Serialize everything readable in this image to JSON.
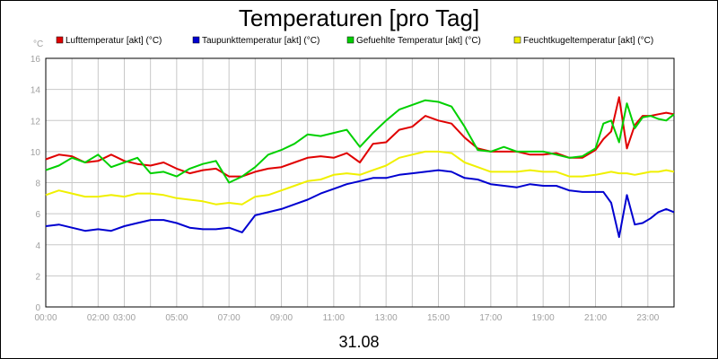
{
  "chart_data": {
    "type": "line",
    "title": "Temperaturen [pro Tag]",
    "y_unit": "°C",
    "xlabel": "31.08",
    "ylim": [
      0,
      16
    ],
    "yticks": [
      0,
      2,
      4,
      6,
      8,
      10,
      12,
      14,
      16
    ],
    "xlim": [
      0,
      24
    ],
    "xticks": [
      {
        "x": 0,
        "label": "00:00"
      },
      {
        "x": 2,
        "label": "02:00"
      },
      {
        "x": 3,
        "label": "03:00"
      },
      {
        "x": 5,
        "label": "05:00"
      },
      {
        "x": 7,
        "label": "07:00"
      },
      {
        "x": 9,
        "label": "09:00"
      },
      {
        "x": 11,
        "label": "11:00"
      },
      {
        "x": 13,
        "label": "13:00"
      },
      {
        "x": 15,
        "label": "15:00"
      },
      {
        "x": 17,
        "label": "17:00"
      },
      {
        "x": 19,
        "label": "19:00"
      },
      {
        "x": 21,
        "label": "21:00"
      },
      {
        "x": 23,
        "label": "23:00"
      }
    ],
    "grid": true,
    "legend_position": "top",
    "series": [
      {
        "name": "Lufttemperatur [akt] (°C)",
        "color": "#e00000",
        "x": [
          0,
          0.5,
          1,
          1.5,
          2,
          2.5,
          3,
          3.5,
          4,
          4.5,
          5,
          5.5,
          6,
          6.5,
          7,
          7.5,
          8,
          8.5,
          9,
          9.5,
          10,
          10.5,
          11,
          11.5,
          12,
          12.5,
          13,
          13.5,
          14,
          14.5,
          15,
          15.5,
          16,
          16.5,
          17,
          17.5,
          18,
          18.5,
          19,
          19.5,
          20,
          20.5,
          21,
          21.3,
          21.6,
          21.9,
          22.2,
          22.5,
          22.8,
          23.1,
          23.4,
          23.7,
          24
        ],
        "values": [
          9.5,
          9.8,
          9.7,
          9.3,
          9.4,
          9.8,
          9.4,
          9.2,
          9.1,
          9.3,
          8.9,
          8.6,
          8.8,
          8.9,
          8.4,
          8.4,
          8.7,
          8.9,
          9.0,
          9.3,
          9.6,
          9.7,
          9.6,
          9.9,
          9.3,
          10.5,
          10.6,
          11.4,
          11.6,
          12.3,
          12.0,
          11.8,
          10.9,
          10.2,
          10.0,
          10.0,
          10.0,
          9.8,
          9.8,
          9.9,
          9.6,
          9.6,
          10.1,
          10.8,
          11.3,
          13.5,
          10.2,
          11.7,
          12.3,
          12.3,
          12.4,
          12.5,
          12.4
        ]
      },
      {
        "name": "Taupunkttemperatur [akt] (°C)",
        "color": "#0000d0",
        "x": [
          0,
          0.5,
          1,
          1.5,
          2,
          2.5,
          3,
          3.5,
          4,
          4.5,
          5,
          5.5,
          6,
          6.5,
          7,
          7.5,
          8,
          8.5,
          9,
          9.5,
          10,
          10.5,
          11,
          11.5,
          12,
          12.5,
          13,
          13.5,
          14,
          14.5,
          15,
          15.5,
          16,
          16.5,
          17,
          17.5,
          18,
          18.5,
          19,
          19.5,
          20,
          20.5,
          21,
          21.3,
          21.6,
          21.9,
          22.2,
          22.5,
          22.8,
          23.1,
          23.4,
          23.7,
          24
        ],
        "values": [
          5.2,
          5.3,
          5.1,
          4.9,
          5.0,
          4.9,
          5.2,
          5.4,
          5.6,
          5.6,
          5.4,
          5.1,
          5.0,
          5.0,
          5.1,
          4.8,
          5.9,
          6.1,
          6.3,
          6.6,
          6.9,
          7.3,
          7.6,
          7.9,
          8.1,
          8.3,
          8.3,
          8.5,
          8.6,
          8.7,
          8.8,
          8.7,
          8.3,
          8.2,
          7.9,
          7.8,
          7.7,
          7.9,
          7.8,
          7.8,
          7.5,
          7.4,
          7.4,
          7.4,
          6.7,
          4.5,
          7.2,
          5.3,
          5.4,
          5.7,
          6.1,
          6.3,
          6.1
        ]
      },
      {
        "name": "Gefuehlte Temperatur [akt] (°C)",
        "color": "#00d000",
        "x": [
          0,
          0.5,
          1,
          1.5,
          2,
          2.5,
          3,
          3.5,
          4,
          4.5,
          5,
          5.5,
          6,
          6.5,
          7,
          7.5,
          8,
          8.5,
          9,
          9.5,
          10,
          10.5,
          11,
          11.5,
          12,
          12.5,
          13,
          13.5,
          14,
          14.5,
          15,
          15.5,
          16,
          16.5,
          17,
          17.5,
          18,
          18.5,
          19,
          19.5,
          20,
          20.5,
          21,
          21.3,
          21.6,
          21.9,
          22.2,
          22.5,
          22.8,
          23.1,
          23.4,
          23.7,
          24
        ],
        "values": [
          8.8,
          9.1,
          9.6,
          9.3,
          9.8,
          9.0,
          9.3,
          9.6,
          8.6,
          8.7,
          8.4,
          8.9,
          9.2,
          9.4,
          8.0,
          8.4,
          9.0,
          9.8,
          10.1,
          10.5,
          11.1,
          11.0,
          11.2,
          11.4,
          10.3,
          11.2,
          12.0,
          12.7,
          13.0,
          13.3,
          13.2,
          12.9,
          11.6,
          10.1,
          10.0,
          10.3,
          10.0,
          10.0,
          10.0,
          9.8,
          9.6,
          9.7,
          10.2,
          11.8,
          12.0,
          10.6,
          13.1,
          11.5,
          12.2,
          12.3,
          12.1,
          12.0,
          12.4
        ]
      },
      {
        "name": "Feuchtkugeltemperatur [akt] (°C)",
        "color": "#f0f000",
        "x": [
          0,
          0.5,
          1,
          1.5,
          2,
          2.5,
          3,
          3.5,
          4,
          4.5,
          5,
          5.5,
          6,
          6.5,
          7,
          7.5,
          8,
          8.5,
          9,
          9.5,
          10,
          10.5,
          11,
          11.5,
          12,
          12.5,
          13,
          13.5,
          14,
          14.5,
          15,
          15.5,
          16,
          16.5,
          17,
          17.5,
          18,
          18.5,
          19,
          19.5,
          20,
          20.5,
          21,
          21.3,
          21.6,
          21.9,
          22.2,
          22.5,
          22.8,
          23.1,
          23.4,
          23.7,
          24
        ],
        "values": [
          7.2,
          7.5,
          7.3,
          7.1,
          7.1,
          7.2,
          7.1,
          7.3,
          7.3,
          7.2,
          7.0,
          6.9,
          6.8,
          6.6,
          6.7,
          6.6,
          7.1,
          7.2,
          7.5,
          7.8,
          8.1,
          8.2,
          8.5,
          8.6,
          8.5,
          8.8,
          9.1,
          9.6,
          9.8,
          10.0,
          10.0,
          9.9,
          9.3,
          9.0,
          8.7,
          8.7,
          8.7,
          8.8,
          8.7,
          8.7,
          8.4,
          8.4,
          8.5,
          8.6,
          8.7,
          8.6,
          8.6,
          8.5,
          8.6,
          8.7,
          8.7,
          8.8,
          8.7
        ]
      }
    ]
  }
}
